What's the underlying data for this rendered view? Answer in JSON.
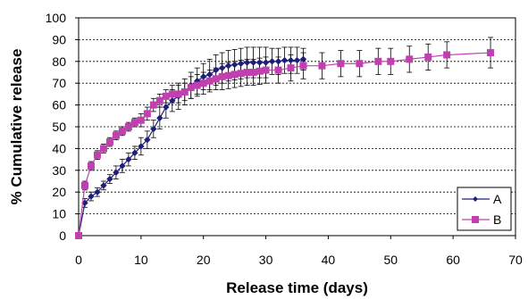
{
  "chart_data": {
    "type": "line",
    "title": "",
    "xlabel": "Release time (days)",
    "ylabel": "% Cumulative release",
    "xlim": [
      0,
      70
    ],
    "ylim": [
      0,
      100
    ],
    "xticks": [
      0,
      10,
      20,
      30,
      40,
      50,
      60,
      70
    ],
    "yticks": [
      0,
      10,
      20,
      30,
      40,
      50,
      60,
      70,
      80,
      90,
      100
    ],
    "grid": "horizontal dashed",
    "legend_position": "bottom-right",
    "series": [
      {
        "name": "A",
        "color": "#1f1f7a",
        "marker": "diamond",
        "x": [
          0,
          1,
          2,
          3,
          4,
          5,
          6,
          7,
          8,
          9,
          10,
          11,
          12,
          13,
          14,
          15,
          16,
          17,
          18,
          19,
          20,
          21,
          22,
          23,
          24,
          25,
          26,
          27,
          28,
          29,
          30,
          31,
          32,
          33,
          34,
          35,
          36
        ],
        "y": [
          0,
          15,
          18,
          20,
          23,
          26,
          29,
          32,
          35,
          38,
          41,
          44,
          49,
          54,
          59,
          62,
          64,
          66,
          69,
          71,
          73,
          74,
          76,
          77,
          78,
          78.5,
          79,
          79.5,
          79.5,
          79.5,
          79.5,
          80,
          80,
          80.5,
          80.5,
          80.5,
          81
        ],
        "error": [
          0,
          2,
          2,
          2,
          2,
          2,
          3,
          3,
          3,
          3,
          4,
          4,
          4,
          5,
          5,
          5,
          6,
          6,
          6,
          6,
          6,
          7,
          7,
          7,
          7,
          7,
          7,
          7,
          7,
          7,
          7,
          6,
          6,
          6,
          6,
          6,
          5
        ]
      },
      {
        "name": "B",
        "color": "#c040b0",
        "marker": "square",
        "x": [
          0,
          1,
          2,
          3,
          4,
          5,
          6,
          7,
          8,
          9,
          10,
          11,
          12,
          13,
          14,
          15,
          16,
          17,
          18,
          19,
          20,
          21,
          22,
          23,
          24,
          25,
          26,
          27,
          28,
          29,
          30,
          32,
          34,
          36,
          39,
          42,
          45,
          48,
          50,
          53,
          56,
          59,
          66
        ],
        "y": [
          0,
          23,
          32,
          37,
          40,
          43,
          46,
          48,
          50,
          52,
          53,
          56,
          60,
          62,
          64,
          65,
          65,
          66,
          68,
          69,
          70,
          71,
          72,
          73,
          73.5,
          74,
          74.5,
          75,
          75,
          75.5,
          76,
          76,
          77,
          78,
          78,
          79,
          79,
          80,
          80,
          81,
          82,
          83,
          84
        ],
        "error": [
          0,
          2,
          2,
          2,
          2,
          2,
          2,
          2,
          2,
          2,
          3,
          3,
          3,
          3,
          3,
          4,
          4,
          4,
          5,
          5,
          5,
          5,
          5,
          6,
          6,
          6,
          6,
          6,
          6,
          6,
          6,
          6,
          6,
          6,
          6,
          6,
          6,
          6,
          6,
          6,
          6,
          6,
          7
        ]
      }
    ]
  }
}
